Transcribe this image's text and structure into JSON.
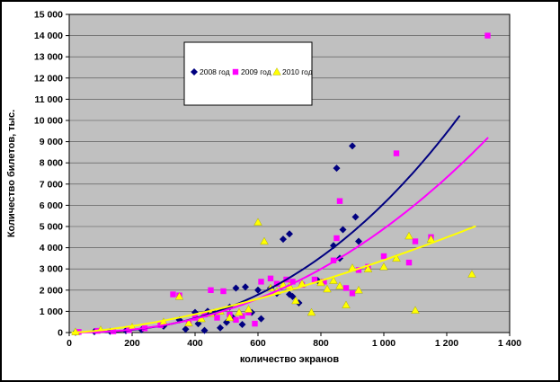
{
  "chart_data": {
    "type": "scatter",
    "title": "",
    "xlabel": "количество экранов",
    "ylabel": "Количество билетов, тыс.",
    "xlim": [
      0,
      1400
    ],
    "ylim": [
      0,
      15000
    ],
    "x_tick_step": 200,
    "y_tick_step": 1000,
    "grid": "horizontal",
    "plot_bg": "#c0c0c0",
    "gridline_color": "#4d4d4d",
    "axis_color": "#000000",
    "legend_position": "top-center",
    "series": [
      {
        "name": "2008 год",
        "color": "#000080",
        "marker": "diamond",
        "points": [
          [
            20,
            10
          ],
          [
            80,
            40
          ],
          [
            130,
            60
          ],
          [
            180,
            90
          ],
          [
            230,
            130
          ],
          [
            300,
            300
          ],
          [
            350,
            600
          ],
          [
            370,
            160
          ],
          [
            400,
            950
          ],
          [
            410,
            420
          ],
          [
            430,
            100
          ],
          [
            440,
            1000
          ],
          [
            460,
            950
          ],
          [
            480,
            220
          ],
          [
            500,
            480
          ],
          [
            510,
            1200
          ],
          [
            520,
            700
          ],
          [
            530,
            2100
          ],
          [
            550,
            380
          ],
          [
            560,
            2150
          ],
          [
            580,
            950
          ],
          [
            600,
            2000
          ],
          [
            610,
            650
          ],
          [
            640,
            2100
          ],
          [
            660,
            1850
          ],
          [
            680,
            4400
          ],
          [
            700,
            4650
          ],
          [
            700,
            1800
          ],
          [
            710,
            1700
          ],
          [
            730,
            1400
          ],
          [
            790,
            2450
          ],
          [
            840,
            4100
          ],
          [
            850,
            7750
          ],
          [
            860,
            3500
          ],
          [
            870,
            4850
          ],
          [
            900,
            8800
          ],
          [
            910,
            5450
          ],
          [
            920,
            4300
          ]
        ],
        "trend": {
          "type": "power",
          "k": 0.000384,
          "b": 2.4,
          "x_start": 100,
          "x_end": 1240
        }
      },
      {
        "name": "2009 год",
        "color": "#ff00ff",
        "marker": "square",
        "points": [
          [
            30,
            30
          ],
          [
            90,
            80
          ],
          [
            140,
            60
          ],
          [
            190,
            120
          ],
          [
            240,
            200
          ],
          [
            290,
            350
          ],
          [
            330,
            1800
          ],
          [
            350,
            1750
          ],
          [
            380,
            420
          ],
          [
            400,
            700
          ],
          [
            430,
            850
          ],
          [
            450,
            2000
          ],
          [
            470,
            700
          ],
          [
            490,
            1950
          ],
          [
            510,
            850
          ],
          [
            530,
            600
          ],
          [
            550,
            780
          ],
          [
            570,
            950
          ],
          [
            590,
            420
          ],
          [
            610,
            2400
          ],
          [
            640,
            2550
          ],
          [
            660,
            2300
          ],
          [
            690,
            2500
          ],
          [
            710,
            2400
          ],
          [
            740,
            2250
          ],
          [
            780,
            2500
          ],
          [
            810,
            2400
          ],
          [
            840,
            3400
          ],
          [
            850,
            4450
          ],
          [
            860,
            6200
          ],
          [
            880,
            2100
          ],
          [
            900,
            1850
          ],
          [
            920,
            2950
          ],
          [
            950,
            3100
          ],
          [
            1000,
            3600
          ],
          [
            1040,
            8450
          ],
          [
            1080,
            3300
          ],
          [
            1100,
            4300
          ],
          [
            1150,
            4500
          ],
          [
            1330,
            14000
          ]
        ],
        "trend": {
          "type": "power",
          "k": 0.00123,
          "b": 2.2,
          "x_start": 30,
          "x_end": 1330
        }
      },
      {
        "name": "2010 год",
        "color": "#ffff00",
        "marker": "triangle",
        "points": [
          [
            20,
            30
          ],
          [
            100,
            130
          ],
          [
            200,
            260
          ],
          [
            300,
            500
          ],
          [
            350,
            1700
          ],
          [
            380,
            450
          ],
          [
            420,
            650
          ],
          [
            450,
            900
          ],
          [
            480,
            1000
          ],
          [
            510,
            700
          ],
          [
            540,
            950
          ],
          [
            570,
            1100
          ],
          [
            600,
            5200
          ],
          [
            620,
            4300
          ],
          [
            640,
            2100
          ],
          [
            660,
            1950
          ],
          [
            680,
            2250
          ],
          [
            700,
            2200
          ],
          [
            720,
            1500
          ],
          [
            740,
            2300
          ],
          [
            770,
            950
          ],
          [
            800,
            2350
          ],
          [
            820,
            2050
          ],
          [
            840,
            2450
          ],
          [
            860,
            2200
          ],
          [
            880,
            1300
          ],
          [
            900,
            3050
          ],
          [
            920,
            2000
          ],
          [
            950,
            3000
          ],
          [
            1000,
            3100
          ],
          [
            1040,
            3500
          ],
          [
            1080,
            4550
          ],
          [
            1100,
            1050
          ],
          [
            1150,
            4400
          ],
          [
            1280,
            2750
          ]
        ],
        "trend": {
          "type": "power",
          "k": 0.108,
          "b": 1.5,
          "x_start": 10,
          "x_end": 1290
        }
      }
    ]
  }
}
